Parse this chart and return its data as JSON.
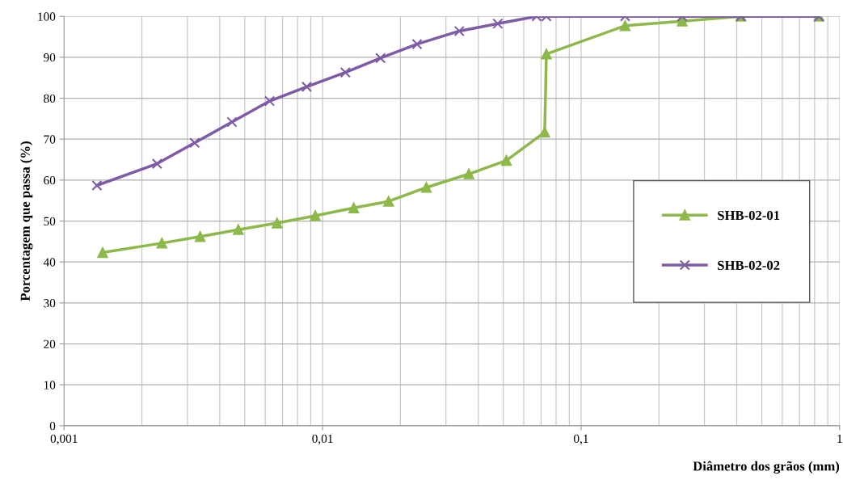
{
  "chart_data": {
    "type": "line",
    "xlabel": "Diâmetro dos grãos (mm)",
    "ylabel": "Porcentagem que passa (%)",
    "log": "x",
    "xlim": [
      0.001,
      1
    ],
    "xticks": [
      {
        "value": 0.001,
        "label": "0,001"
      },
      {
        "value": 0.01,
        "label": "0,01"
      },
      {
        "value": 0.1,
        "label": "0,1"
      },
      {
        "value": 1,
        "label": "1"
      }
    ],
    "ylim": [
      0,
      100
    ],
    "yticks": [
      0,
      10,
      20,
      30,
      40,
      50,
      60,
      70,
      80,
      90,
      100
    ],
    "grid": true,
    "legend": "right",
    "series": [
      {
        "name": "SHB-02-01",
        "color": "#8db84a",
        "marker": "triangle",
        "x": [
          0.00141,
          0.00239,
          0.00336,
          0.00472,
          0.00667,
          0.00937,
          0.0132,
          0.018,
          0.0252,
          0.0368,
          0.0514,
          0.0723,
          0.0734,
          0.148,
          0.246,
          0.415,
          0.832
        ],
        "values": [
          42.3,
          44.6,
          46.2,
          47.9,
          49.5,
          51.3,
          53.2,
          54.8,
          58.2,
          61.5,
          64.8,
          71.7,
          90.8,
          97.7,
          98.8,
          100,
          100
        ]
      },
      {
        "name": "SHB-02-02",
        "color": "#7d5ba6",
        "marker": "cross",
        "x": [
          0.00134,
          0.00229,
          0.0032,
          0.00446,
          0.00624,
          0.00868,
          0.01225,
          0.01675,
          0.0232,
          0.0338,
          0.0476,
          0.0673,
          0.0734,
          0.148,
          0.246,
          0.415,
          0.832
        ],
        "values": [
          58.7,
          64.0,
          69.1,
          74.2,
          79.3,
          82.8,
          86.3,
          89.8,
          93.2,
          96.4,
          98.2,
          100,
          100,
          100,
          100,
          100,
          100
        ]
      }
    ]
  }
}
